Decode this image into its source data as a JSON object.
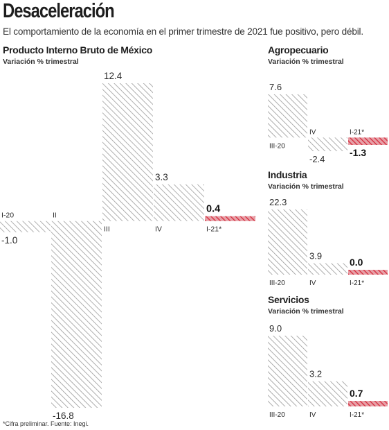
{
  "header": {
    "title": "Desaceleración",
    "subtitle": "El comportamiento de la economía en el primer trimestre de 2021 fue positivo, pero débil."
  },
  "footnote": "*Cifra preliminar. Fuente: Inegi.",
  "colors": {
    "hatch": "#9a9a9a",
    "highlight": "#d62b3c",
    "text": "#2a2a2a"
  },
  "chart_data": [
    {
      "type": "bar",
      "title": "Producto Interno Bruto de México",
      "subtitle": "Variación % trimestral",
      "categories": [
        "I-20",
        "II",
        "III",
        "IV",
        "I-21*"
      ],
      "values": [
        -1.0,
        -16.8,
        12.4,
        3.3,
        0.4
      ],
      "value_labels": [
        "-1.0",
        "-16.8",
        "12.4",
        "3.3",
        "0.4"
      ],
      "highlight_index": 4,
      "ylim": [
        -16.8,
        12.4
      ]
    },
    {
      "type": "bar",
      "title": "Agropecuario",
      "subtitle": "Variación % trimestral",
      "categories": [
        "III-20",
        "IV",
        "I-21*"
      ],
      "values": [
        7.6,
        -2.4,
        -1.3
      ],
      "value_labels": [
        "7.6",
        "-2.4",
        "-1.3"
      ],
      "highlight_index": 2,
      "ylim": [
        -2.4,
        7.6
      ]
    },
    {
      "type": "bar",
      "title": "Industria",
      "subtitle": "Variación % trimestral",
      "categories": [
        "III-20",
        "IV",
        "I-21*"
      ],
      "values": [
        22.3,
        3.9,
        0.0
      ],
      "value_labels": [
        "22.3",
        "3.9",
        "0.0"
      ],
      "highlight_index": 2,
      "ylim": [
        0,
        22.3
      ]
    },
    {
      "type": "bar",
      "title": "Servicios",
      "subtitle": "Variación % trimestral",
      "categories": [
        "III-20",
        "IV",
        "I-21*"
      ],
      "values": [
        9.0,
        3.2,
        0.7
      ],
      "value_labels": [
        "9.0",
        "3.2",
        "0.7"
      ],
      "highlight_index": 2,
      "ylim": [
        0,
        9.0
      ]
    }
  ]
}
